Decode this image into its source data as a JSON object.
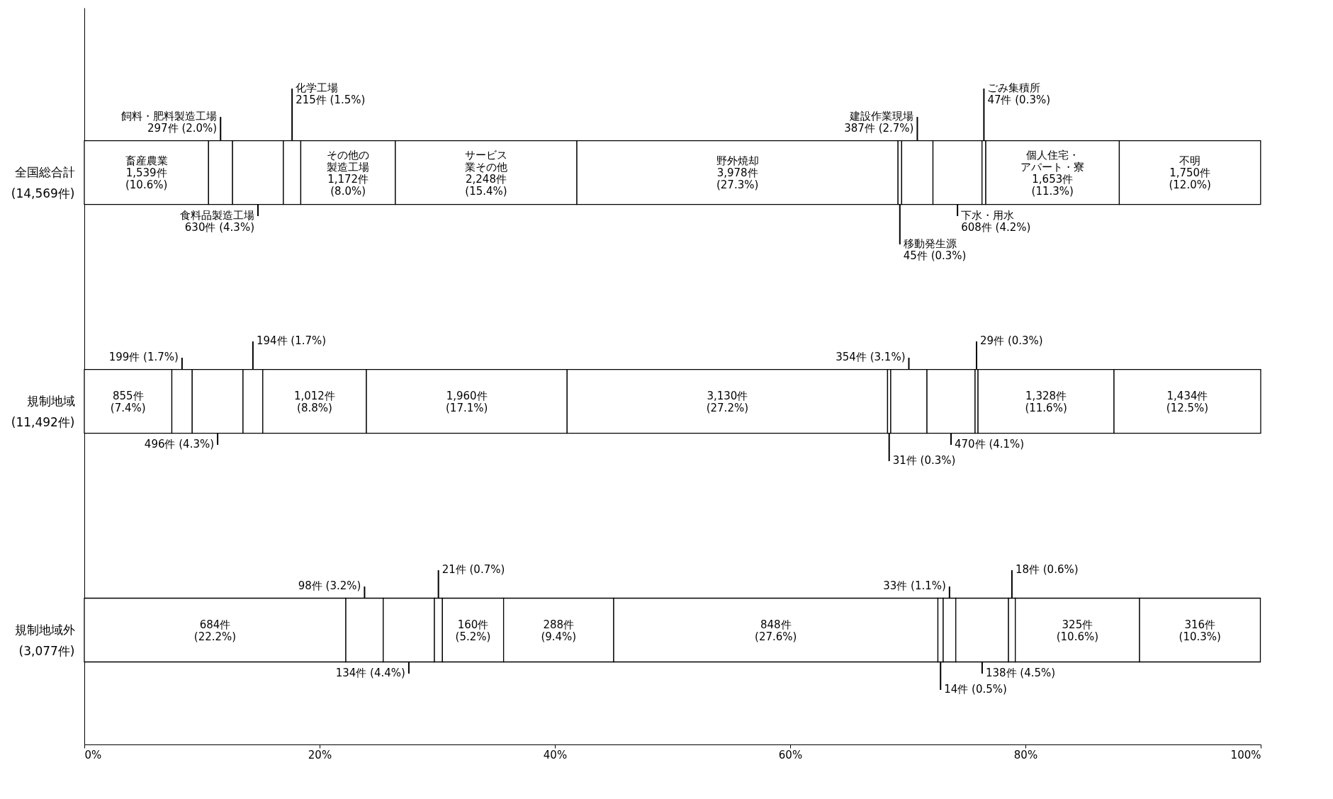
{
  "chart_data": {
    "type": "bar",
    "orientation": "horizontal",
    "stacked": true,
    "grid": false,
    "categories": [
      "全国総合計 (14,569件)",
      "規制地域 (11,492件)",
      "規制地域外 (3,077件)"
    ],
    "xlim": [
      0,
      100
    ],
    "xticks": [
      {
        "value": 0,
        "label": "0%"
      },
      {
        "value": 20,
        "label": "20%"
      },
      {
        "value": 40,
        "label": "40%"
      },
      {
        "value": 60,
        "label": "60%"
      },
      {
        "value": 80,
        "label": "80%"
      },
      {
        "value": 100,
        "label": "100%"
      }
    ],
    "series": [
      {
        "name": "畜産農業",
        "color": "#ffffff",
        "values": [
          10.56,
          7.44,
          22.23
        ],
        "value_labels": [
          "1,539件 (10.6%)",
          "855件 (7.4%)",
          "684件 (22.2%)"
        ]
      },
      {
        "name": "飼料・肥料製造工場",
        "color": "#ffffff",
        "values": [
          2.04,
          1.73,
          3.18
        ],
        "value_labels": [
          "297件 (2.0%)",
          "199件 (1.7%)",
          "98件 (3.2%)"
        ]
      },
      {
        "name": "食料品製造工場",
        "color": "#ffffff",
        "values": [
          4.32,
          4.32,
          4.35
        ],
        "value_labels": [
          "630件 (4.3%)",
          "496件 (4.3%)",
          "134件 (4.4%)"
        ]
      },
      {
        "name": "化学工場",
        "color": "#ffffff",
        "values": [
          1.48,
          1.68,
          0.68
        ],
        "value_labels": [
          "215件 (1.5%)",
          "194件 (1.7%)",
          "21件 (0.7%)"
        ]
      },
      {
        "name": "その他の製造工場",
        "color": "#ffffff",
        "values": [
          8.04,
          8.81,
          5.2
        ],
        "value_labels": [
          "1,172件 (8.0%)",
          "1,012件 (8.8%)",
          "160件 (5.2%)"
        ]
      },
      {
        "name": "サービス業その他",
        "color": "#ffffff",
        "values": [
          15.43,
          17.06,
          9.36
        ],
        "value_labels": [
          "2,248件 (15.4%)",
          "1,960件 (17.1%)",
          "288件 (9.4%)"
        ]
      },
      {
        "name": "野外焼却",
        "color": "#ffffff",
        "values": [
          27.3,
          27.24,
          27.56
        ],
        "value_labels": [
          "3,978件 (27.3%)",
          "3,130件 (27.2%)",
          "848件 (27.6%)"
        ]
      },
      {
        "name": "移動発生源",
        "color": "#ffffff",
        "values": [
          0.31,
          0.27,
          0.45
        ],
        "value_labels": [
          "45件 (0.3%)",
          "31件 (0.3%)",
          "14件 (0.5%)"
        ]
      },
      {
        "name": "建設作業現場",
        "color": "#ffffff",
        "values": [
          2.66,
          3.08,
          1.07
        ],
        "value_labels": [
          "387件 (2.7%)",
          "354件 (3.1%)",
          "33件 (1.1%)"
        ]
      },
      {
        "name": "下水・用水",
        "color": "#ffffff",
        "values": [
          4.17,
          4.09,
          4.48
        ],
        "value_labels": [
          "608件 (4.2%)",
          "470件 (4.1%)",
          "138件 (4.5%)"
        ]
      },
      {
        "name": "ごみ集積所",
        "color": "#ffffff",
        "values": [
          0.32,
          0.25,
          0.58
        ],
        "value_labels": [
          "47件 (0.3%)",
          "29件 (0.3%)",
          "18件 (0.6%)"
        ]
      },
      {
        "name": "個人住宅・アパート・寮",
        "color": "#ffffff",
        "values": [
          11.35,
          11.56,
          10.56
        ],
        "value_labels": [
          "1,653件 (11.3%)",
          "1,328件 (11.6%)",
          "325件 (10.6%)"
        ]
      },
      {
        "name": "不明",
        "color": "#ffffff",
        "values": [
          12.01,
          12.47,
          10.27
        ],
        "value_labels": [
          "1,750件 (12.0%)",
          "1,434件 (12.5%)",
          "316件 (10.3%)"
        ]
      }
    ]
  }
}
